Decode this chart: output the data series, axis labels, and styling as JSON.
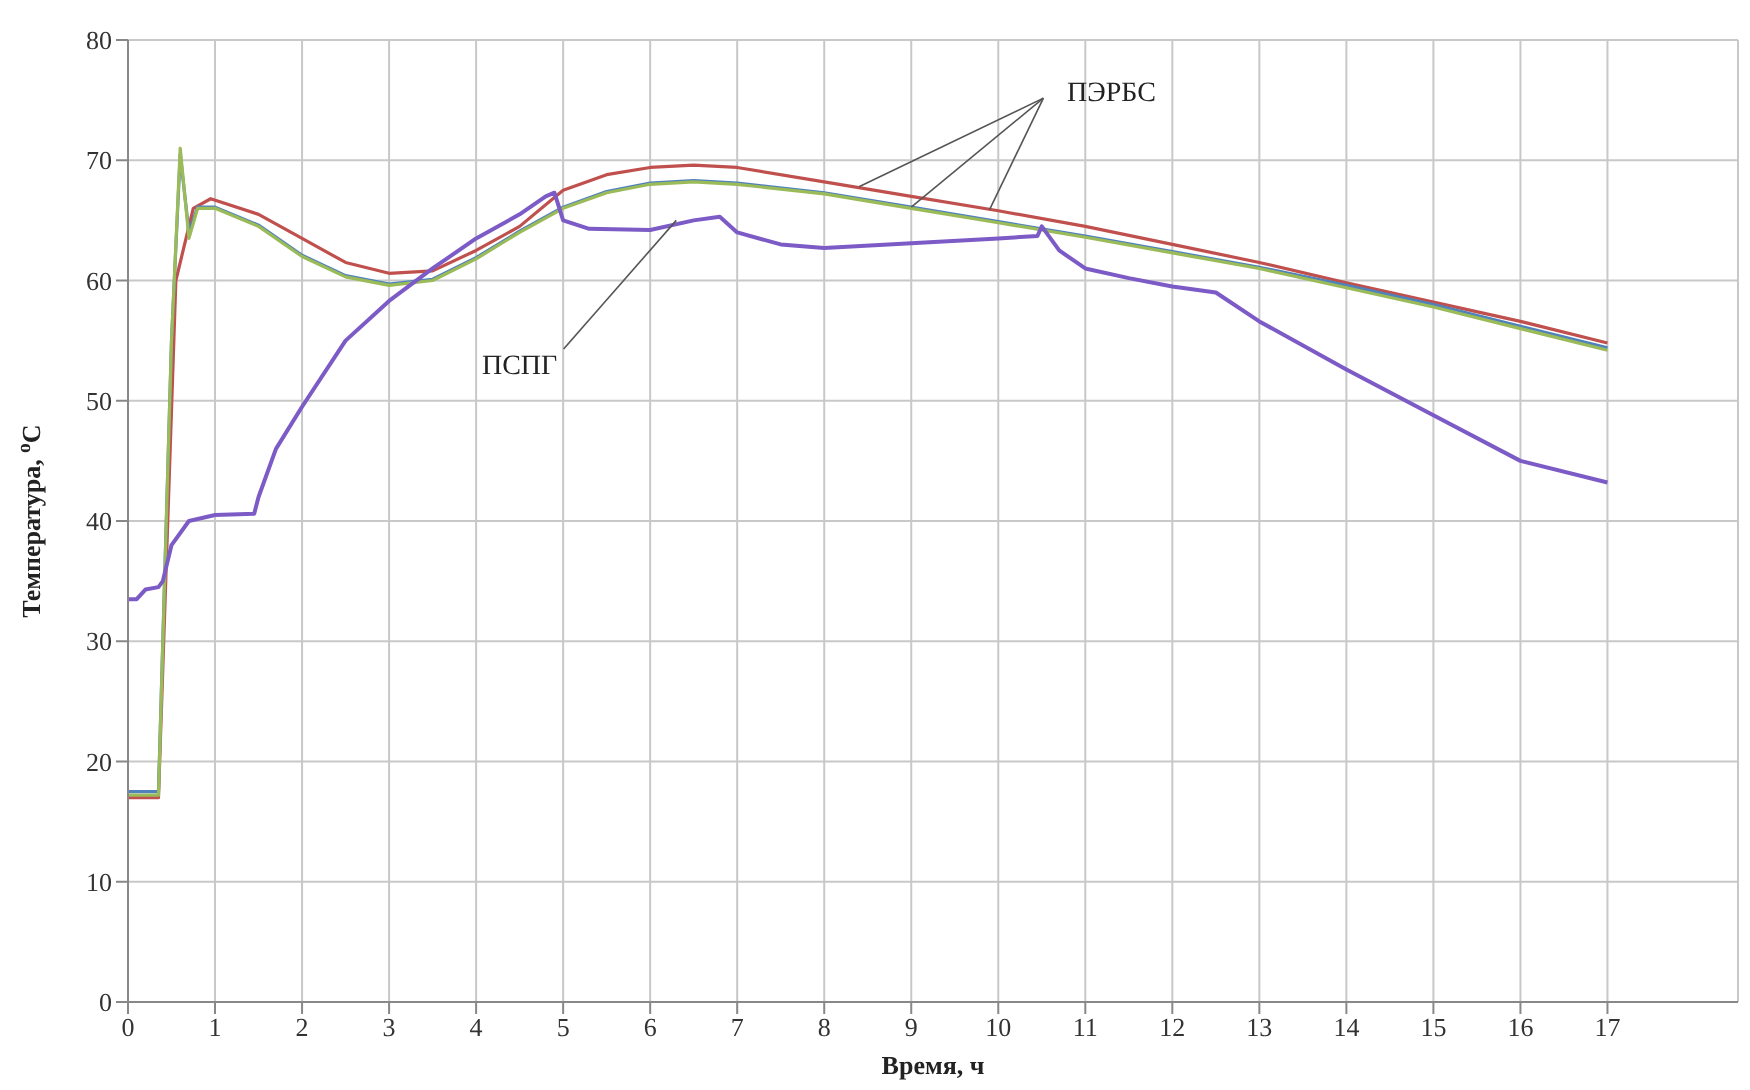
{
  "chart_data": {
    "type": "line",
    "xlabel": "Время, ч",
    "ylabel": "Температура, $^{о}$С",
    "xlim": [
      0,
      18.5
    ],
    "xticks": [
      0,
      1,
      2,
      3,
      4,
      5,
      6,
      7,
      8,
      9,
      10,
      11,
      12,
      13,
      14,
      15,
      16,
      17
    ],
    "ylim": [
      0,
      80
    ],
    "yticks": [
      0,
      10,
      20,
      30,
      40,
      50,
      60,
      70,
      80
    ],
    "grid": true,
    "legend": false,
    "marker": "none",
    "line_style": "solid",
    "series": [
      {
        "color": "#c0504d",
        "x": [
          0,
          0.35,
          0.55,
          0.75,
          0.95,
          1.5,
          2,
          2.5,
          3,
          3.5,
          4,
          4.5,
          5,
          5.5,
          6,
          6.5,
          7,
          8,
          9,
          10,
          11,
          12,
          13,
          14,
          15,
          16,
          17
        ],
        "values": [
          17,
          17,
          60,
          66,
          66.8,
          65.5,
          63.5,
          61.5,
          60.6,
          60.8,
          62.5,
          64.5,
          67.5,
          68.8,
          69.4,
          69.6,
          69.4,
          68.2,
          67,
          65.8,
          64.5,
          63,
          61.5,
          59.8,
          58.2,
          56.6,
          54.8
        ]
      },
      {
        "color": "#4f81bd",
        "x": [
          0,
          0.35,
          0.5,
          0.6,
          0.7,
          0.8,
          1,
          1.5,
          2,
          2.5,
          3,
          3.5,
          4,
          4.5,
          5,
          5.5,
          6,
          6.5,
          7,
          8,
          9,
          10,
          11,
          12,
          13,
          14,
          15,
          16,
          17
        ],
        "values": [
          17.5,
          17.5,
          55,
          70.5,
          64,
          66.1,
          66.1,
          64.6,
          62.1,
          60.4,
          59.7,
          60.1,
          61.9,
          64.1,
          66.1,
          67.4,
          68.1,
          68.3,
          68.1,
          67.3,
          66.1,
          64.9,
          63.7,
          62.4,
          61.1,
          59.6,
          58,
          56.2,
          54.4
        ]
      },
      {
        "color": "#9bbb59",
        "x": [
          0,
          0.35,
          0.5,
          0.6,
          0.7,
          0.8,
          1,
          1.5,
          2,
          2.5,
          3,
          3.5,
          4,
          4.5,
          5,
          5.5,
          6,
          6.5,
          7,
          8,
          9,
          10,
          11,
          12,
          13,
          14,
          15,
          16,
          17
        ],
        "values": [
          17.2,
          17.2,
          55,
          71,
          63.5,
          66,
          66,
          64.5,
          62,
          60.3,
          59.6,
          60,
          61.8,
          64,
          66,
          67.3,
          68,
          68.2,
          68,
          67.2,
          66,
          64.8,
          63.6,
          62.3,
          61,
          59.4,
          57.8,
          56,
          54.2
        ]
      },
      {
        "color": "#7d5bc6",
        "x": [
          0,
          0.1,
          0.2,
          0.35,
          0.4,
          0.5,
          0.7,
          1,
          1.45,
          1.5,
          1.7,
          2,
          2.5,
          3,
          3.5,
          4,
          4.5,
          4.8,
          4.9,
          5,
          5.3,
          6,
          6.5,
          6.8,
          7,
          7.5,
          8,
          9,
          10,
          10.45,
          10.5,
          10.7,
          11,
          11.5,
          12,
          12.5,
          13,
          14,
          15,
          16,
          17
        ],
        "values": [
          33.5,
          33.5,
          34.3,
          34.5,
          35,
          38,
          40,
          40.5,
          40.6,
          42,
          46,
          49.5,
          55,
          58.3,
          61,
          63.5,
          65.5,
          67,
          67.3,
          65,
          64.3,
          64.2,
          65,
          65.3,
          64,
          63,
          62.7,
          63.1,
          63.5,
          63.7,
          64.5,
          62.5,
          61,
          60.2,
          59.5,
          59,
          56.6,
          52.6,
          48.8,
          45,
          43.2
        ]
      }
    ],
    "annotations": [
      {
        "text": "ПЭРБС",
        "x": 9.0,
        "y": 66.1
      },
      {
        "text": "ПСПГ",
        "x": 6.3,
        "y": 65.0
      }
    ]
  }
}
